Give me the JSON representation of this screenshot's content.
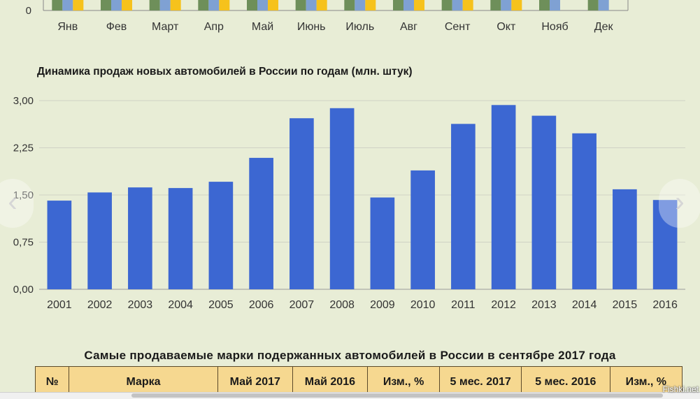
{
  "top_chart": {
    "zero_label": "0",
    "months": [
      "Янв",
      "Фев",
      "Март",
      "Апр",
      "Май",
      "Июнь",
      "Июль",
      "Авг",
      "Сент",
      "Окт",
      "Нояб",
      "Дек"
    ],
    "colors": [
      "#6e8f5a",
      "#7fa1d3",
      "#f6c21c"
    ],
    "series_count": [
      3,
      3,
      3,
      3,
      3,
      3,
      3,
      3,
      3,
      3,
      2,
      2
    ]
  },
  "chart_data": {
    "type": "bar",
    "title": "Динамика продаж новых автомобилей в России по годам (млн. штук)",
    "categories": [
      "2001",
      "2002",
      "2003",
      "2004",
      "2005",
      "2006",
      "2007",
      "2008",
      "2009",
      "2010",
      "2011",
      "2012",
      "2013",
      "2014",
      "2015",
      "2016"
    ],
    "values": [
      1.41,
      1.54,
      1.62,
      1.61,
      1.71,
      2.09,
      2.72,
      2.88,
      1.46,
      1.89,
      2.63,
      2.93,
      2.76,
      2.48,
      1.59,
      1.42
    ],
    "yticks": [
      "0,00",
      "0,75",
      "1,50",
      "2,25",
      "3,00"
    ],
    "ylim": [
      0,
      3
    ],
    "grid": true,
    "bar_color": "#3c67d2"
  },
  "nav": {
    "left_icon": "chevron-left-icon",
    "right_icon": "chevron-right-icon",
    "left_glyph": "‹",
    "right_glyph": "›"
  },
  "table": {
    "title": "Самые продаваемые марки подержанных автомобилей в России в сентябре 2017 года",
    "headers": [
      "№",
      "Марка",
      "Май 2017",
      "Май 2016",
      "Изм., %",
      "5 мес. 2017",
      "5 мес. 2016",
      "Изм., %"
    ]
  },
  "watermark": "Fishki.net"
}
